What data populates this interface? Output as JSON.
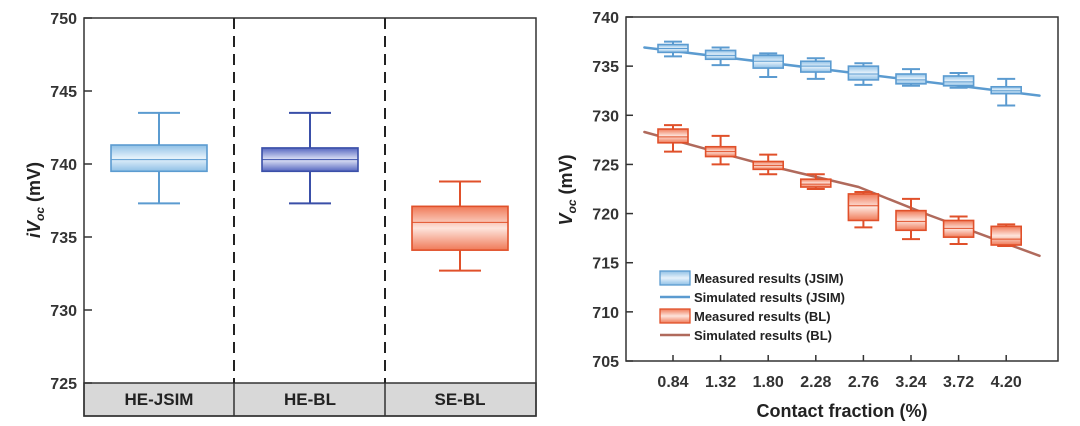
{
  "chart_data": [
    {
      "type": "box",
      "panel": "left",
      "ylabel_main": "iV",
      "ylabel_sub": "oc",
      "ylabel_unit": " (mV)",
      "ylim": [
        725,
        750
      ],
      "yticks": [
        725,
        730,
        735,
        740,
        745,
        750
      ],
      "categories": [
        "HE-JSIM",
        "HE-BL",
        "SE-BL"
      ],
      "boxes": [
        {
          "name": "HE-JSIM",
          "min": 737.3,
          "q1": 739.5,
          "median": 740.3,
          "q3": 741.3,
          "max": 743.5,
          "color": "#5b9bd0"
        },
        {
          "name": "HE-BL",
          "min": 737.3,
          "q1": 739.5,
          "median": 740.3,
          "q3": 741.1,
          "max": 743.5,
          "color": "#3a4fa8"
        },
        {
          "name": "SE-BL",
          "min": 732.7,
          "q1": 734.1,
          "median": 736.0,
          "q3": 737.1,
          "max": 738.8,
          "color": "#e0502a"
        }
      ]
    },
    {
      "type": "box+line",
      "panel": "right",
      "xlabel": "Contact fraction (%)",
      "ylabel_main": "V",
      "ylabel_sub": "oc",
      "ylabel_unit": " (mV)",
      "ylim": [
        705,
        740
      ],
      "yticks": [
        705,
        710,
        715,
        720,
        725,
        730,
        735,
        740
      ],
      "x_categories": [
        "0.84",
        "1.32",
        "1.80",
        "2.28",
        "2.76",
        "3.24",
        "3.72",
        "4.20"
      ],
      "series": [
        {
          "name": "Measured results (JSIM)",
          "kind": "box",
          "color": "#5b9bd0",
          "boxes": [
            {
              "min": 736.0,
              "q1": 736.4,
              "median": 736.8,
              "q3": 737.2,
              "max": 737.5
            },
            {
              "min": 735.1,
              "q1": 735.7,
              "median": 736.1,
              "q3": 736.6,
              "max": 736.9
            },
            {
              "min": 733.9,
              "q1": 734.8,
              "median": 735.5,
              "q3": 736.1,
              "max": 736.3
            },
            {
              "min": 733.7,
              "q1": 734.4,
              "median": 735.0,
              "q3": 735.5,
              "max": 735.8
            },
            {
              "min": 733.1,
              "q1": 733.6,
              "median": 734.2,
              "q3": 735.0,
              "max": 735.3
            },
            {
              "min": 733.0,
              "q1": 733.2,
              "median": 733.6,
              "q3": 734.2,
              "max": 734.7
            },
            {
              "min": 732.8,
              "q1": 733.0,
              "median": 733.4,
              "q3": 734.0,
              "max": 734.3
            },
            {
              "min": 731.0,
              "q1": 732.2,
              "median": 732.5,
              "q3": 732.9,
              "max": 733.7
            }
          ]
        },
        {
          "name": "Simulated results (JSIM)",
          "kind": "line",
          "color": "#5b9bd0",
          "x": [
            0,
            8.3
          ],
          "y": [
            736.9,
            732.0
          ]
        },
        {
          "name": "Measured results (BL)",
          "kind": "box",
          "color": "#e0502a",
          "boxes": [
            {
              "min": 726.3,
              "q1": 727.2,
              "median": 727.8,
              "q3": 728.6,
              "max": 729.0
            },
            {
              "min": 725.0,
              "q1": 725.8,
              "median": 726.3,
              "q3": 726.8,
              "max": 727.9
            },
            {
              "min": 724.0,
              "q1": 724.5,
              "median": 724.9,
              "q3": 725.3,
              "max": 726.0
            },
            {
              "min": 722.5,
              "q1": 722.7,
              "median": 723.0,
              "q3": 723.5,
              "max": 724.0
            },
            {
              "min": 718.6,
              "q1": 719.3,
              "median": 720.8,
              "q3": 722.0,
              "max": 722.2
            },
            {
              "min": 717.4,
              "q1": 718.3,
              "median": 719.2,
              "q3": 720.3,
              "max": 721.5
            },
            {
              "min": 716.9,
              "q1": 717.6,
              "median": 718.5,
              "q3": 719.3,
              "max": 719.7
            },
            {
              "min": 716.7,
              "q1": 716.8,
              "median": 717.4,
              "q3": 718.7,
              "max": 718.9
            }
          ]
        },
        {
          "name": "Simulated results (BL)",
          "kind": "line",
          "color": "#b06a5c",
          "x": [
            0,
            1.5,
            2.5,
            4.5,
            6.0,
            8.3
          ],
          "y": [
            728.3,
            726.3,
            725.0,
            722.7,
            719.8,
            715.7
          ]
        }
      ],
      "legend_position": "bottom-left"
    }
  ]
}
